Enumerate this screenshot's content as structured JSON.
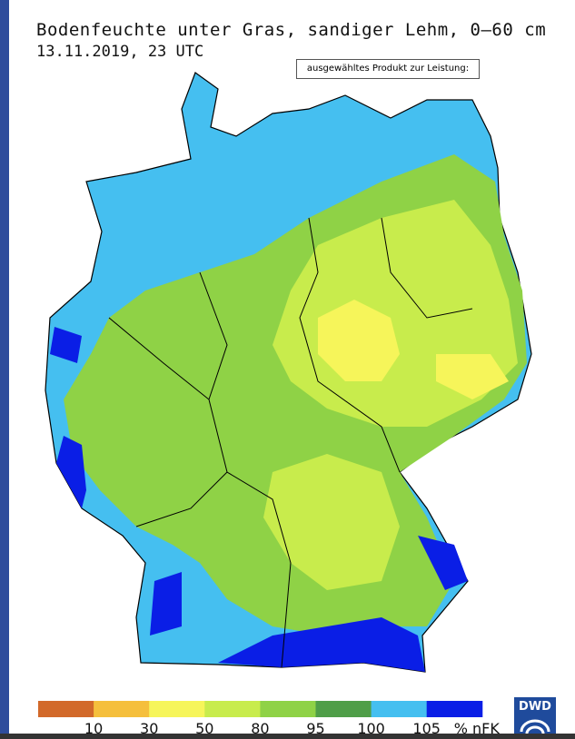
{
  "header": {
    "title": "Bodenfeuchte unter Gras, sandiger Lehm, 0—60 cm",
    "date": "13.11.2019, 23 UTC"
  },
  "tooltip": "ausgewähltes Produkt zur Leistung:",
  "legend": {
    "colors": [
      "#d2692a",
      "#f5bf3c",
      "#f6f55a",
      "#c8ec4c",
      "#8fd246",
      "#4f9e48",
      "#45bff0",
      "#0a1ee6"
    ],
    "labels": [
      10,
      30,
      50,
      80,
      95,
      100,
      105
    ],
    "unit": "% nFK"
  },
  "logo": "DWD"
}
